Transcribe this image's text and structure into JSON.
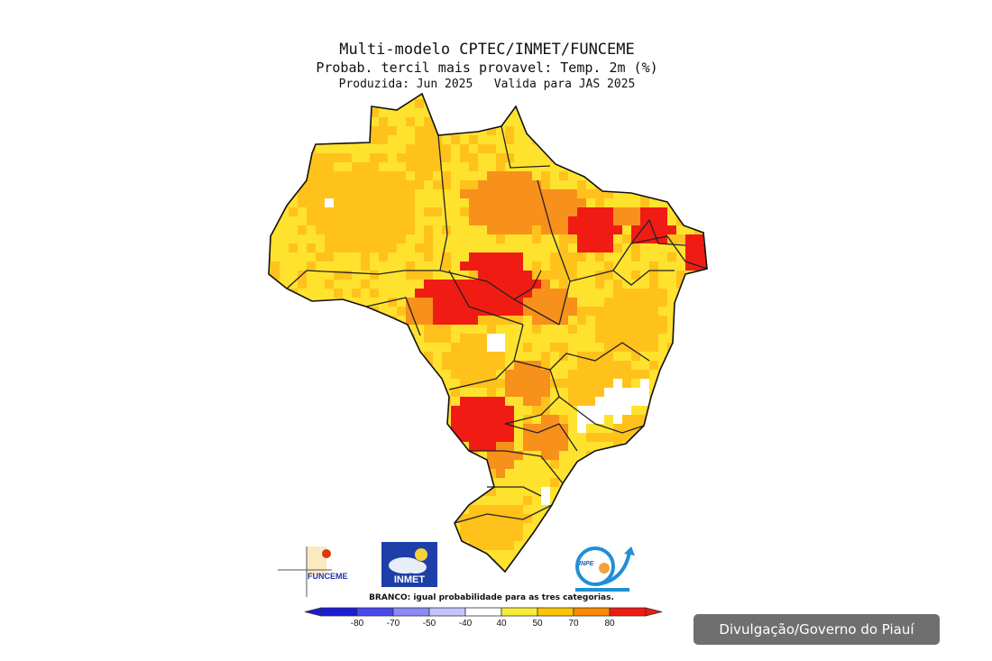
{
  "header": {
    "title": "Multi-modelo CPTEC/INMET/FUNCEME",
    "subtitle": "Probab. tercil mais provavel: Temp. 2m (%)",
    "period": "Produzida: Jun 2025   Valida para JAS 2025"
  },
  "logos": {
    "funceme": "FUNCEME",
    "inmet": "INMET",
    "inpe": "INPE"
  },
  "legend": {
    "note": "BRANCO: igual probabilidade para as tres categorias.",
    "ticks": [
      "-80",
      "-70",
      "-50",
      "-40",
      "40",
      "50",
      "70",
      "80"
    ],
    "colors": [
      "#1c1cd8",
      "#4848f0",
      "#8a8af8",
      "#c4c4fc",
      "#ffffff",
      "#f7ec3a",
      "#ffc400",
      "#ff8a00",
      "#f01c14"
    ]
  },
  "map": {
    "palette": {
      "white": "#ffffff",
      "yellow": "#ffe22e",
      "gold": "#ffc21c",
      "orange": "#f8901c",
      "red": "#f01c14"
    }
  },
  "caption": "Divulgação/Governo do Piauí"
}
